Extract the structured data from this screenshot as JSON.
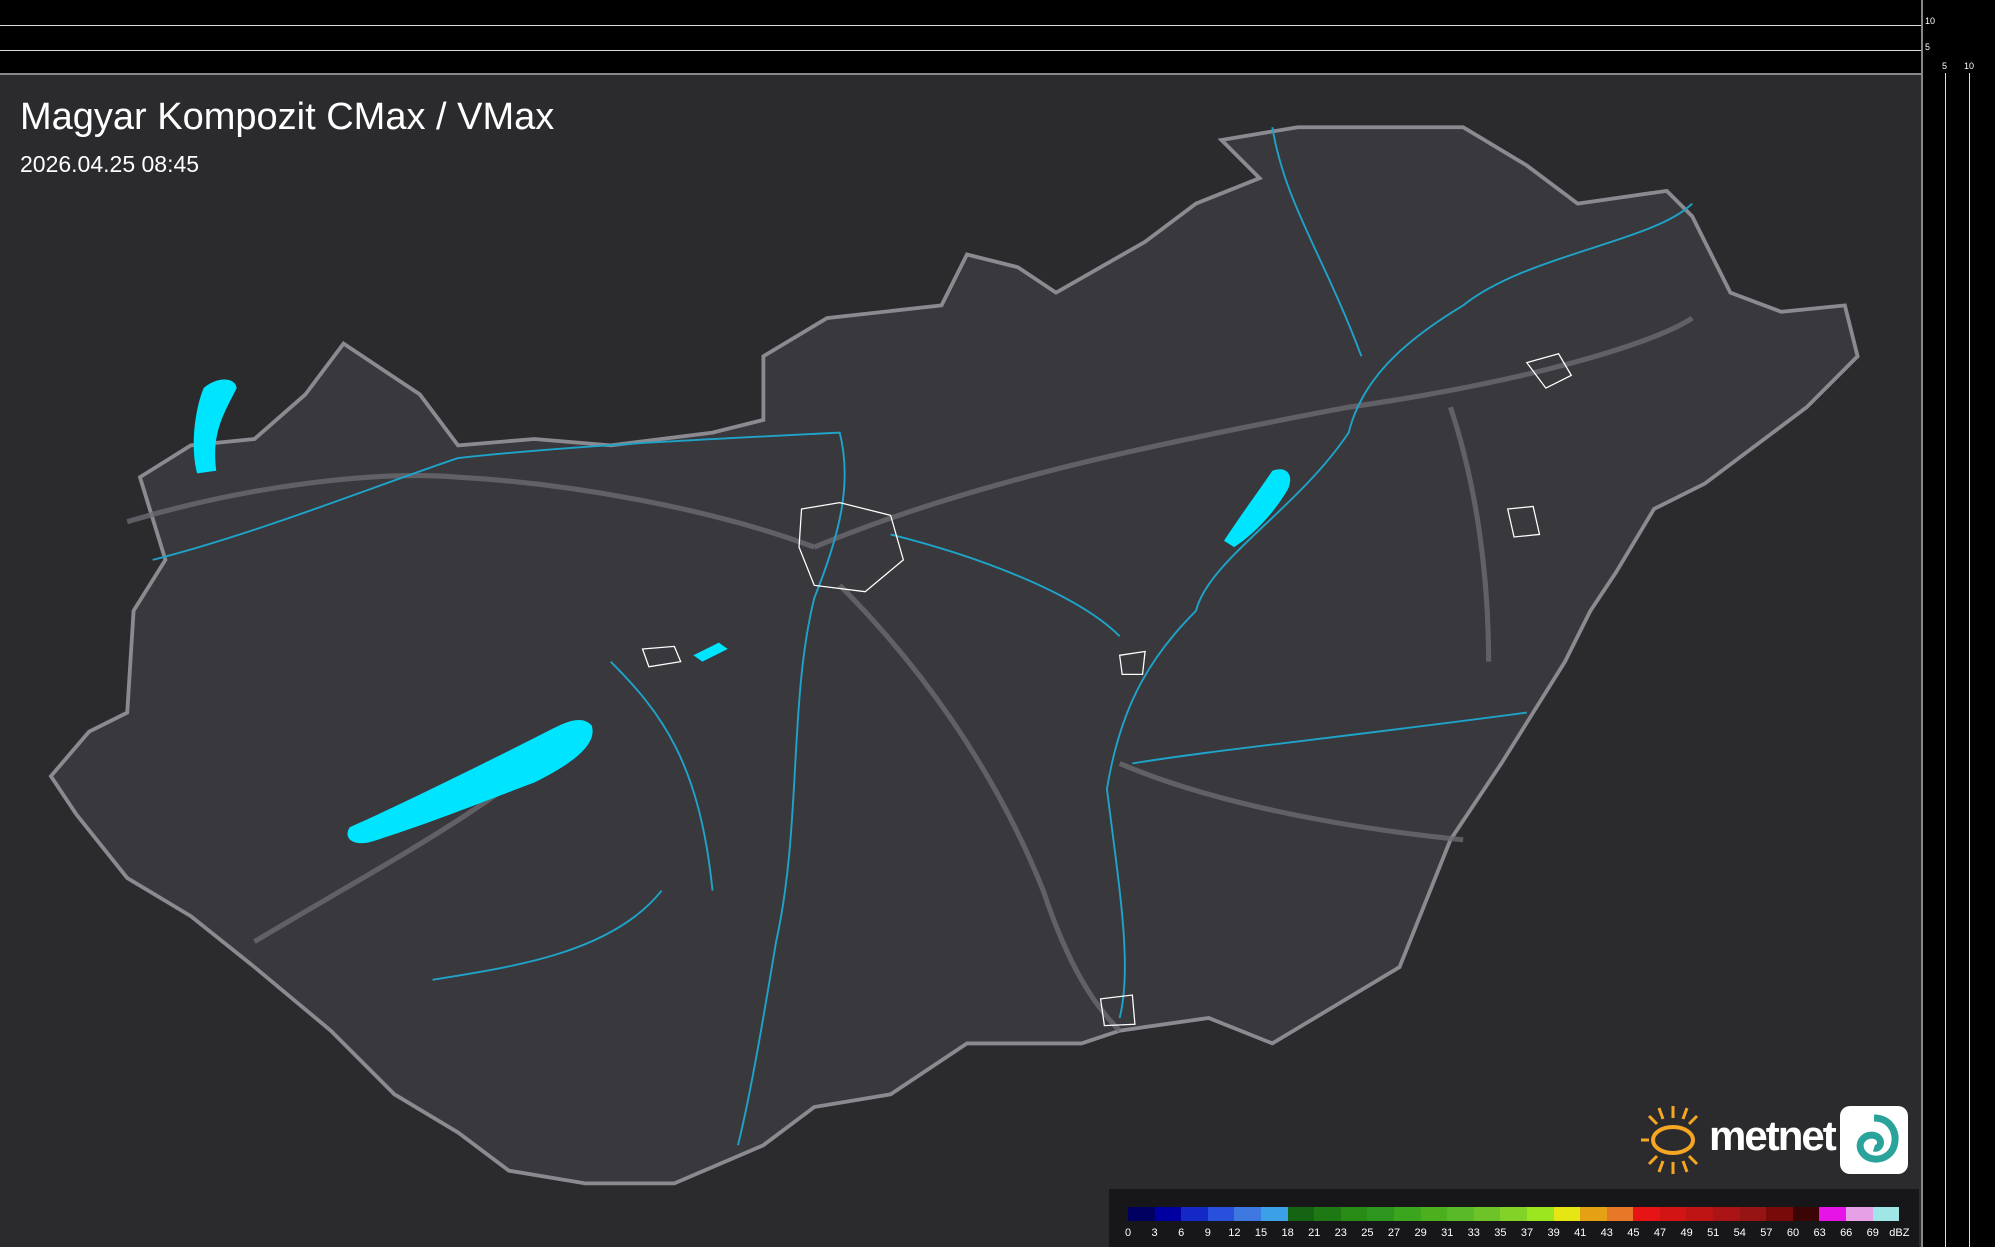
{
  "header": {
    "title": "Magyar Kompozit CMax / VMax",
    "datetime": "2026.04.25 08:45"
  },
  "scale_panel": {
    "vertical_ticks": [
      "10",
      "5"
    ],
    "horizontal_ticks": [
      "5",
      "10"
    ]
  },
  "legend": {
    "unit": "dBZ",
    "labels": [
      "0",
      "3",
      "6",
      "9",
      "12",
      "15",
      "18",
      "21",
      "23",
      "25",
      "27",
      "29",
      "31",
      "33",
      "35",
      "37",
      "39",
      "41",
      "43",
      "45",
      "47",
      "49",
      "51",
      "54",
      "57",
      "60",
      "63",
      "66",
      "69"
    ],
    "colors": [
      "#000060",
      "#0000a0",
      "#1428c8",
      "#2850dc",
      "#3c78e0",
      "#3ca0e6",
      "#146414",
      "#1e7814",
      "#288c14",
      "#2d961e",
      "#3ca51e",
      "#4baf1e",
      "#5ab928",
      "#6ec328",
      "#82d228",
      "#9be61e",
      "#e6e614",
      "#e6a014",
      "#e67828",
      "#e61414",
      "#d21414",
      "#be1414",
      "#aa1414",
      "#961414",
      "#780a0a",
      "#3c0505",
      "#e614e6",
      "#e6a0e6",
      "#a0e6e6"
    ]
  },
  "map": {
    "background_color": "#2b2b2e",
    "country_fill": "#38383d",
    "border_color": "#8a8a90",
    "river_color": "#1fa3c8",
    "lake_color": "#00e5ff"
  },
  "logo": {
    "text": "metnet"
  }
}
